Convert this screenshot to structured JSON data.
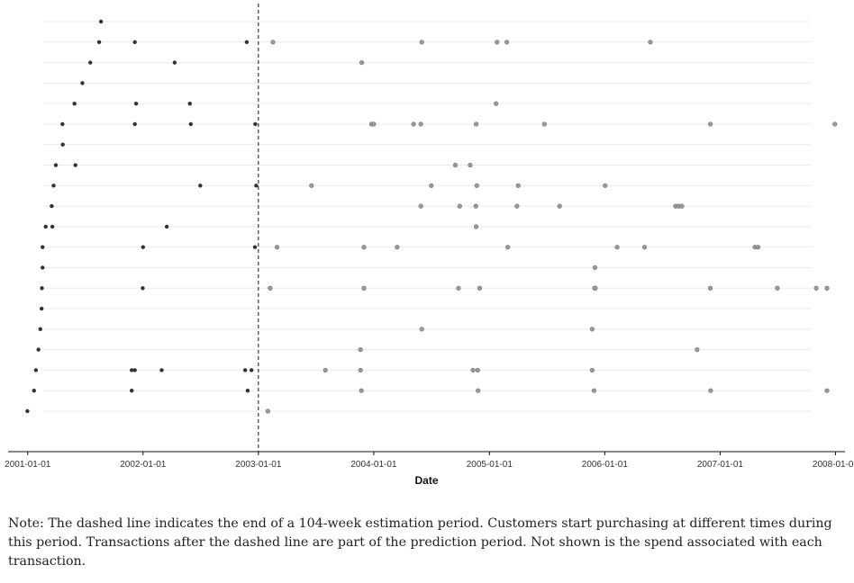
{
  "chart_data": {
    "type": "scatter",
    "title": "",
    "xlabel": "Date",
    "ylabel": "",
    "xlim": [
      "2000-10-31",
      "2008-01-31"
    ],
    "x_ticks": [
      "2001-01-01",
      "2002-01-01",
      "2003-01-01",
      "2004-01-01",
      "2005-01-01",
      "2006-01-01",
      "2007-01-01",
      "2008-01-01"
    ],
    "estimation_end": "2003-01-01",
    "grid": "horizontal",
    "colors": {
      "estimation": "#333333",
      "prediction": "#9a9a9a",
      "prediction_edge": "#6f6f6f",
      "gridline": "#ebebeb"
    },
    "customers": [
      [
        "2001-08-21"
      ],
      [
        "2001-08-15",
        "2001-12-06",
        "2002-11-25",
        "2003-02-16",
        "2004-06-01",
        "2005-01-25",
        "2005-02-25",
        "2006-05-25"
      ],
      [
        "2001-07-18",
        "2002-04-11",
        "2003-11-24"
      ],
      [
        "2001-06-23"
      ],
      [
        "2001-05-29",
        "2001-12-10",
        "2002-05-29",
        "2005-01-22"
      ],
      [
        "2001-04-21",
        "2001-12-06",
        "2002-06-01",
        "2002-12-22",
        "2003-12-25",
        "2004-01-01",
        "2004-05-06",
        "2004-05-29",
        "2004-11-20",
        "2005-06-24",
        "2006-12-01",
        "2007-12-30"
      ],
      [
        "2001-04-22"
      ],
      [
        "2001-03-31",
        "2001-06-01",
        "2004-09-15",
        "2004-11-01"
      ],
      [
        "2001-03-24",
        "2002-07-01",
        "2002-12-25",
        "2003-06-18",
        "2004-07-01",
        "2004-11-22",
        "2005-04-02",
        "2006-01-02"
      ],
      [
        "2001-03-18",
        "2004-05-29",
        "2004-09-29",
        "2004-11-19",
        "2005-03-29",
        "2005-08-11",
        "2006-08-13",
        "2006-08-23",
        "2006-09-02"
      ],
      [
        "2001-02-27",
        "2001-03-20",
        "2002-03-17",
        "2004-11-20"
      ],
      [
        "2001-02-17",
        "2002-01-01",
        "2002-12-21",
        "2003-03-01",
        "2003-12-01",
        "2004-03-15",
        "2005-02-28",
        "2006-02-09",
        "2006-05-07",
        "2007-04-21",
        "2007-05-01"
      ],
      [
        "2001-02-17",
        "2005-12-01"
      ],
      [
        "2001-02-15",
        "2001-12-31",
        "2003-02-07",
        "2003-12-01",
        "2004-09-25",
        "2004-12-01",
        "2005-11-30",
        "2005-12-02",
        "2006-12-01",
        "2007-07-01",
        "2007-11-01",
        "2007-12-05"
      ],
      [
        "2001-02-14"
      ],
      [
        "2001-02-10",
        "2004-06-01",
        "2005-11-22"
      ],
      [
        "2001-02-04",
        "2003-11-20",
        "2006-10-20"
      ],
      [
        "2001-01-27",
        "2001-11-26",
        "2001-12-06",
        "2002-03-01",
        "2002-11-20",
        "2002-12-10",
        "2003-08-01",
        "2003-11-20",
        "2004-11-10",
        "2004-11-25",
        "2005-11-22"
      ],
      [
        "2001-01-21",
        "2001-11-26",
        "2002-11-28",
        "2003-11-23",
        "2004-11-26",
        "2005-11-28",
        "2006-12-02",
        "2007-12-05"
      ],
      [
        "2000-12-31",
        "2003-01-31"
      ]
    ]
  },
  "note": "Note: The dashed line indicates the end of a 104-week estimation period. Customers start purchasing at different times during this period. Transactions after the dashed line are part of the prediction period. Not shown is the spend associated with each transaction."
}
